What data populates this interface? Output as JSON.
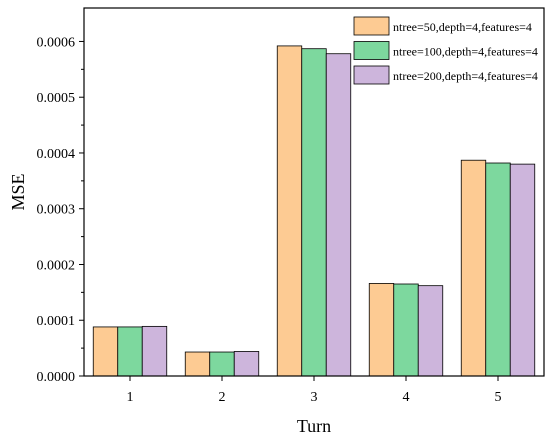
{
  "chart_data": {
    "type": "bar",
    "title": "",
    "xlabel": "Turn",
    "ylabel": "MSE",
    "categories": [
      "1",
      "2",
      "3",
      "4",
      "5"
    ],
    "ylim": [
      0,
      0.00066
    ],
    "yticks": [
      "0.0000",
      "0.0001",
      "0.0002",
      "0.0003",
      "0.0004",
      "0.0005",
      "0.0006"
    ],
    "ytick_values": [
      0,
      0.0001,
      0.0002,
      0.0003,
      0.0004,
      0.0005,
      0.0006
    ],
    "grid": false,
    "legend_position": "top-right",
    "series": [
      {
        "name": "ntree=50,depth=4,features=4",
        "color": "#FDCB93",
        "values": [
          8.8e-05,
          4.3e-05,
          0.000592,
          0.000166,
          0.000387
        ]
      },
      {
        "name": "ntree=100,depth=4,features=4",
        "color": "#7DD89E",
        "values": [
          8.8e-05,
          4.3e-05,
          0.000587,
          0.000165,
          0.000382
        ]
      },
      {
        "name": "ntree=200,depth=4,features=4",
        "color": "#CDB5DC",
        "values": [
          8.9e-05,
          4.4e-05,
          0.000578,
          0.000162,
          0.00038
        ]
      }
    ]
  }
}
